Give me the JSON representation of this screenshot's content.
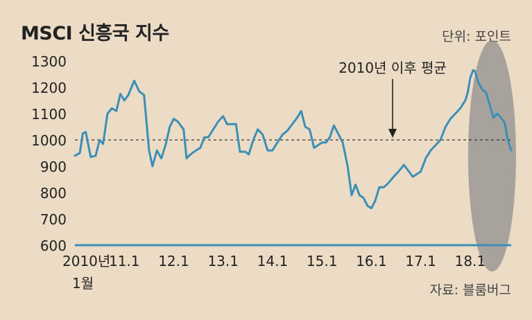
{
  "chart_data": {
    "type": "line",
    "title": "MSCI 신흥국 지수",
    "unit_note": "단위: 포인트",
    "source": "자료: 블룸버그",
    "xlabel": "",
    "ylabel": "",
    "ylim": [
      600,
      1300
    ],
    "y_ticks": [
      "1300",
      "1200",
      "1100",
      "1000",
      "900",
      "800",
      "700",
      "600"
    ],
    "x_ticks": [
      {
        "label": "2010년",
        "sub": "1월",
        "t": 2010.0
      },
      {
        "label": "11.1",
        "t": 2011.0
      },
      {
        "label": "12.1",
        "t": 2012.0
      },
      {
        "label": "13.1",
        "t": 2013.0
      },
      {
        "label": "14.1",
        "t": 2014.0
      },
      {
        "label": "15.1",
        "t": 2015.0
      },
      {
        "label": "16.1",
        "t": 2016.0
      },
      {
        "label": "17.1",
        "t": 2017.0
      },
      {
        "label": "18.1",
        "t": 2018.0
      }
    ],
    "average": {
      "value": 1000,
      "label": "2010년 이후 평균"
    },
    "highlight": {
      "from": 2018.0,
      "to": 2018.83
    },
    "series": [
      {
        "color": "#3a8fb7",
        "points": [
          [
            2010.0,
            940
          ],
          [
            2010.1,
            950
          ],
          [
            2010.16,
            1025
          ],
          [
            2010.22,
            1030
          ],
          [
            2010.32,
            935
          ],
          [
            2010.42,
            940
          ],
          [
            2010.5,
            1000
          ],
          [
            2010.57,
            985
          ],
          [
            2010.66,
            1100
          ],
          [
            2010.75,
            1120
          ],
          [
            2010.84,
            1110
          ],
          [
            2010.92,
            1175
          ],
          [
            2011.0,
            1150
          ],
          [
            2011.08,
            1170
          ],
          [
            2011.2,
            1225
          ],
          [
            2011.3,
            1185
          ],
          [
            2011.4,
            1170
          ],
          [
            2011.5,
            960
          ],
          [
            2011.57,
            900
          ],
          [
            2011.66,
            960
          ],
          [
            2011.75,
            930
          ],
          [
            2011.84,
            985
          ],
          [
            2011.92,
            1050
          ],
          [
            2012.0,
            1080
          ],
          [
            2012.08,
            1070
          ],
          [
            2012.2,
            1040
          ],
          [
            2012.26,
            930
          ],
          [
            2012.34,
            945
          ],
          [
            2012.45,
            960
          ],
          [
            2012.54,
            970
          ],
          [
            2012.62,
            1010
          ],
          [
            2012.7,
            1010
          ],
          [
            2012.8,
            1040
          ],
          [
            2012.9,
            1070
          ],
          [
            2013.0,
            1090
          ],
          [
            2013.08,
            1060
          ],
          [
            2013.2,
            1060
          ],
          [
            2013.26,
            1060
          ],
          [
            2013.34,
            955
          ],
          [
            2013.45,
            955
          ],
          [
            2013.52,
            945
          ],
          [
            2013.62,
            1005
          ],
          [
            2013.7,
            1040
          ],
          [
            2013.8,
            1020
          ],
          [
            2013.9,
            960
          ],
          [
            2014.0,
            960
          ],
          [
            2014.08,
            985
          ],
          [
            2014.2,
            1020
          ],
          [
            2014.3,
            1035
          ],
          [
            2014.4,
            1060
          ],
          [
            2014.5,
            1085
          ],
          [
            2014.58,
            1110
          ],
          [
            2014.66,
            1050
          ],
          [
            2014.75,
            1040
          ],
          [
            2014.84,
            970
          ],
          [
            2014.92,
            980
          ],
          [
            2015.0,
            990
          ],
          [
            2015.08,
            990
          ],
          [
            2015.16,
            1010
          ],
          [
            2015.24,
            1055
          ],
          [
            2015.34,
            1020
          ],
          [
            2015.42,
            990
          ],
          [
            2015.52,
            900
          ],
          [
            2015.6,
            790
          ],
          [
            2015.68,
            830
          ],
          [
            2015.76,
            790
          ],
          [
            2015.84,
            780
          ],
          [
            2015.92,
            750
          ],
          [
            2016.0,
            740
          ],
          [
            2016.08,
            770
          ],
          [
            2016.16,
            820
          ],
          [
            2016.25,
            820
          ],
          [
            2016.34,
            835
          ],
          [
            2016.45,
            860
          ],
          [
            2016.55,
            880
          ],
          [
            2016.66,
            905
          ],
          [
            2016.76,
            880
          ],
          [
            2016.84,
            860
          ],
          [
            2016.92,
            870
          ],
          [
            2017.0,
            880
          ],
          [
            2017.1,
            930
          ],
          [
            2017.2,
            960
          ],
          [
            2017.3,
            980
          ],
          [
            2017.4,
            1000
          ],
          [
            2017.5,
            1050
          ],
          [
            2017.6,
            1080
          ],
          [
            2017.7,
            1100
          ],
          [
            2017.8,
            1120
          ],
          [
            2017.9,
            1150
          ],
          [
            2017.95,
            1180
          ],
          [
            2018.0,
            1235
          ],
          [
            2018.06,
            1265
          ],
          [
            2018.1,
            1260
          ],
          [
            2018.16,
            1220
          ],
          [
            2018.25,
            1190
          ],
          [
            2018.32,
            1180
          ],
          [
            2018.4,
            1130
          ],
          [
            2018.47,
            1085
          ],
          [
            2018.55,
            1100
          ],
          [
            2018.62,
            1085
          ],
          [
            2018.7,
            1065
          ],
          [
            2018.76,
            1000
          ],
          [
            2018.83,
            960
          ]
        ]
      }
    ]
  }
}
